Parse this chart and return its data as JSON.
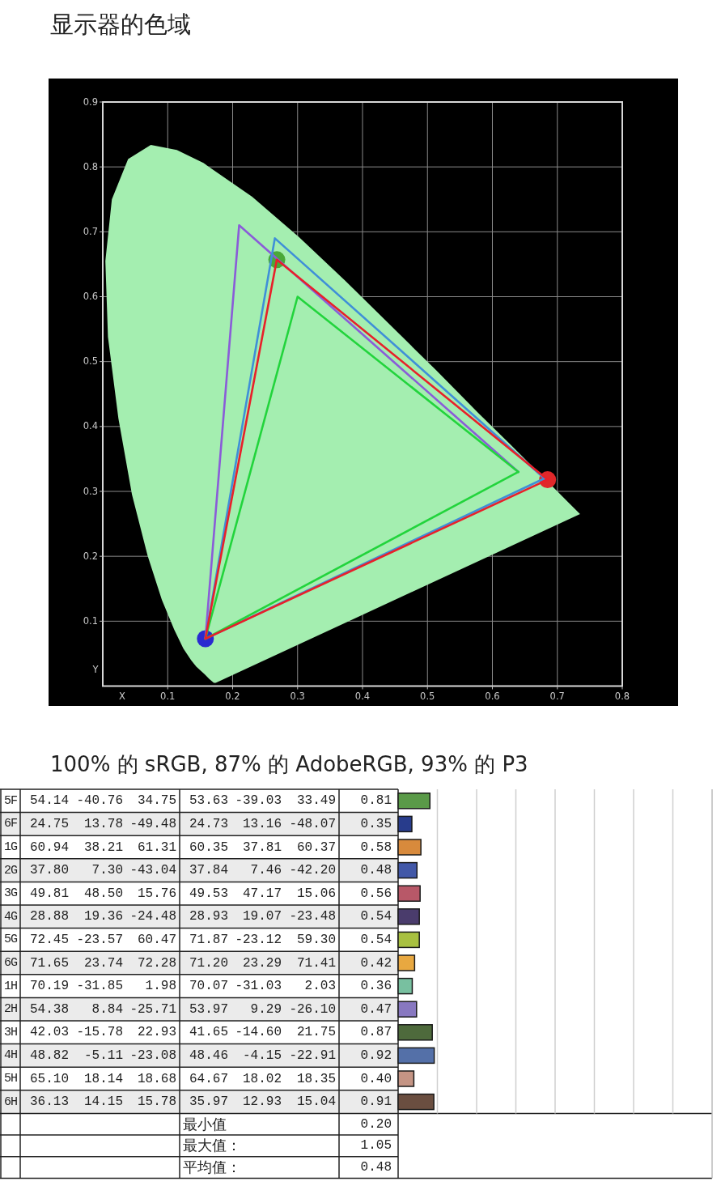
{
  "chart_data": [
    {
      "type": "line",
      "title": "显示器的色域",
      "xlabel": "X",
      "ylabel": "Y",
      "annotations": [
        "100% 的 sRGB, 87% 的 AdobeRGB, 93% 的 P3"
      ],
      "xlim": [
        0,
        0.8
      ],
      "ylim": [
        0,
        0.9
      ],
      "xticks": [
        0.1,
        0.2,
        0.3,
        0.4,
        0.5,
        0.6,
        0.7,
        0.8
      ],
      "yticks": [
        0.1,
        0.2,
        0.3,
        0.4,
        0.5,
        0.6,
        0.7,
        0.8,
        0.9
      ],
      "grid": true,
      "series": [
        {
          "type": "area",
          "color": "#a4eeb0",
          "x": [
            0.174,
            0.171,
            0.164,
            0.157,
            0.144,
            0.136,
            0.124,
            0.11,
            0.091,
            0.069,
            0.045,
            0.024,
            0.008,
            0.004,
            0.014,
            0.039,
            0.074,
            0.114,
            0.155,
            0.23,
            0.302,
            0.373,
            0.444,
            0.513,
            0.575,
            0.627,
            0.666,
            0.692,
            0.719,
            0.735
          ],
          "values": [
            0.005,
            0.005,
            0.011,
            0.018,
            0.03,
            0.04,
            0.058,
            0.087,
            0.133,
            0.201,
            0.295,
            0.413,
            0.538,
            0.655,
            0.75,
            0.812,
            0.834,
            0.826,
            0.806,
            0.754,
            0.692,
            0.625,
            0.555,
            0.487,
            0.424,
            0.373,
            0.334,
            0.308,
            0.281,
            0.265
          ]
        },
        {
          "type": "scatter",
          "marker": "circle",
          "colors": [
            "#e0282a",
            "#4aa838",
            "#2a2ad0"
          ],
          "x": [
            0.685,
            0.268,
            0.158
          ],
          "values": [
            0.318,
            0.657,
            0.073
          ]
        },
        {
          "type": "line",
          "color": "#8a5cd8",
          "x": [
            0.158,
            0.21,
            0.64
          ],
          "values": [
            0.073,
            0.71,
            0.33
          ]
        },
        {
          "type": "line",
          "color": "#3f8fd8",
          "x": [
            0.158,
            0.265,
            0.68
          ],
          "values": [
            0.073,
            0.69,
            0.32
          ]
        },
        {
          "type": "line",
          "color": "#3f8fd8",
          "x": [
            0.158,
            0.68
          ],
          "values": [
            0.073,
            0.32
          ]
        },
        {
          "type": "line",
          "color": "#22d43c",
          "x": [
            0.158,
            0.3,
            0.64
          ],
          "values": [
            0.073,
            0.6,
            0.33
          ]
        },
        {
          "type": "line",
          "color": "#22d43c",
          "x": [
            0.158,
            0.64
          ],
          "values": [
            0.073,
            0.33
          ]
        },
        {
          "type": "line",
          "color": "#e8202a",
          "x": [
            0.158,
            0.268,
            0.685
          ],
          "values": [
            0.073,
            0.657,
            0.318
          ]
        },
        {
          "type": "line",
          "color": "#e8202a",
          "x": [
            0.158,
            0.685
          ],
          "values": [
            0.073,
            0.318
          ]
        }
      ]
    },
    {
      "type": "bar",
      "orientation": "horizontal",
      "categories": [
        "5F",
        "6F",
        "1G",
        "2G",
        "3G",
        "4G",
        "5G",
        "6G",
        "1H",
        "2H",
        "3H",
        "4H",
        "5H",
        "6H"
      ],
      "values": [
        0.81,
        0.35,
        0.58,
        0.48,
        0.56,
        0.54,
        0.54,
        0.42,
        0.36,
        0.47,
        0.87,
        0.92,
        0.4,
        0.91
      ],
      "colors": [
        "#5a9a48",
        "#283c8c",
        "#d88a3c",
        "#4258a8",
        "#b85868",
        "#4a3c6c",
        "#a8c040",
        "#e8a840",
        "#78c0a0",
        "#8878c0",
        "#4e6a3c",
        "#5470a8",
        "#c49484",
        "#6a4e40"
      ],
      "value_labels": [
        "0.81",
        "0.35",
        "0.58",
        "0.48",
        "0.56",
        "0.54",
        "0.54",
        "0.42",
        "0.36",
        "0.47",
        "0.87",
        "0.92",
        "0.40",
        "0.91"
      ],
      "xlim": [
        0,
        8
      ],
      "xticks": [
        {
          "value": 1,
          "label": null
        },
        {
          "value": 2,
          "label": null
        },
        {
          "value": 3,
          "label": null
        },
        {
          "value": 4,
          "label": null
        },
        {
          "value": 5,
          "label": null
        },
        {
          "value": 6,
          "label": null
        },
        {
          "value": 7,
          "label": null
        }
      ],
      "grid": "x",
      "tick_labels": "y",
      "annotations": [
        "54.14",
        "-40.76",
        "34.75",
        "53.63",
        "-39.03",
        "33.49",
        "24.75",
        "13.78",
        "-49.48",
        "24.73",
        "13.16",
        "-48.07",
        "60.94",
        "38.21",
        "61.31",
        "60.35",
        "37.81",
        "60.37",
        "37.80",
        "7.30",
        "-43.04",
        "37.84",
        "7.46",
        "-42.20",
        "49.81",
        "48.50",
        "15.76",
        "49.53",
        "47.17",
        "15.06",
        "28.88",
        "19.36",
        "-24.48",
        "28.93",
        "19.07",
        "-23.48",
        "72.45",
        "-23.57",
        "60.47",
        "71.87",
        "-23.12",
        "59.30",
        "71.65",
        "23.74",
        "72.28",
        "71.20",
        "23.29",
        "71.41",
        "70.19",
        "-31.85",
        "1.98",
        "70.07",
        "-31.03",
        "2.03",
        "54.38",
        "8.84",
        "-25.71",
        "53.97",
        "9.29",
        "-26.10",
        "42.03",
        "-15.78",
        "22.93",
        "41.65",
        "-14.60",
        "21.75",
        "48.82",
        "-5.11",
        "-23.08",
        "48.46",
        "-4.15",
        "-22.91",
        "65.10",
        "18.14",
        "18.68",
        "64.67",
        "18.02",
        "18.35",
        "36.13",
        "14.15",
        "15.78",
        "35.97",
        "12.93",
        "15.04",
        "最小值",
        "0.20",
        "最大值：",
        "1.05",
        "平均值：",
        "0.48"
      ]
    }
  ]
}
